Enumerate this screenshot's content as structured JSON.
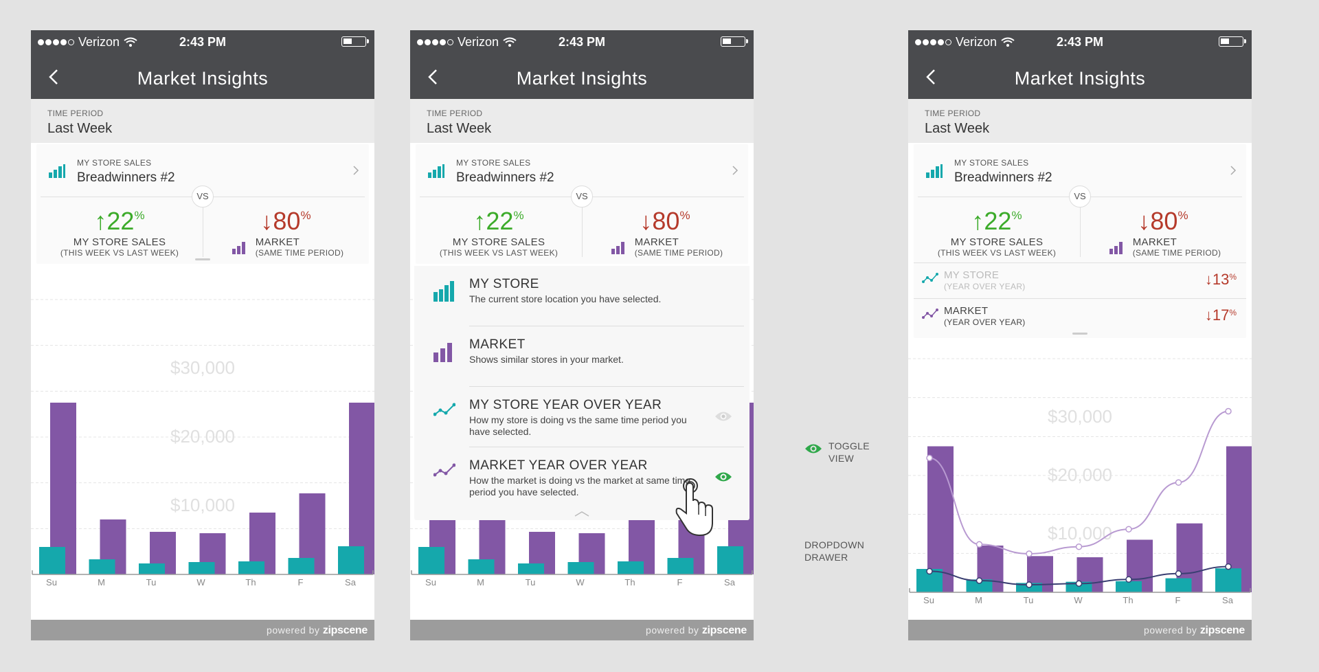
{
  "status": {
    "carrier": "Verizon",
    "time": "2:43 PM"
  },
  "nav": {
    "title": "Market Insights"
  },
  "period": {
    "label": "TIME PERIOD",
    "value": "Last Week"
  },
  "store": {
    "label": "MY STORE SALES",
    "name": "Breadwinners #2"
  },
  "vs": "VS",
  "metrics": {
    "store": {
      "value": "↑22",
      "unit": "%",
      "label": "MY STORE SALES",
      "sub": "(THIS WEEK VS LAST WEEK)"
    },
    "market": {
      "value": "↓80",
      "unit": "%",
      "label": "MARKET",
      "sub": "(SAME TIME PERIOD)"
    }
  },
  "drawer": {
    "items": [
      {
        "title": "MY STORE",
        "desc": "The current store location you have selected."
      },
      {
        "title": "MARKET",
        "desc": "Shows similar stores in your market."
      },
      {
        "title": "MY STORE YEAR OVER YEAR",
        "desc": "How my store is doing vs the same time period you have selected."
      },
      {
        "title": "MARKET YEAR OVER YEAR",
        "desc": "How the market is doing vs the market at same time period you have selected."
      }
    ]
  },
  "yoy": {
    "store": {
      "name": "MY STORE",
      "desc": "(YEAR OVER YEAR)",
      "value": "↓13",
      "unit": "%"
    },
    "market": {
      "name": "MARKET",
      "desc": "(YEAR OVER YEAR)",
      "value": "↓17",
      "unit": "%"
    }
  },
  "annotations": {
    "toggle": "TOGGLE\nVIEW",
    "drawer": "DROPDOWN\nDRAWER"
  },
  "footer": {
    "powered": "powered by",
    "brand": "zipscene"
  },
  "colors": {
    "purple": "#8257a5",
    "teal": "#15a8ac",
    "green": "#3cab2a",
    "red": "#b53a2b",
    "header": "#4a4b4e"
  },
  "chart_data": {
    "type": "bar",
    "categories": [
      "Su",
      "M",
      "Tu",
      "W",
      "Th",
      "F",
      "Sa"
    ],
    "yticks": [
      "$10,000",
      "$20,000",
      "$30,000"
    ],
    "ylim": [
      0,
      40000
    ],
    "series": [
      {
        "name": "MARKET",
        "values": [
          25000,
          8000,
          6200,
          6000,
          9000,
          11800,
          25000
        ]
      },
      {
        "name": "MY STORE",
        "values": [
          4000,
          2200,
          1600,
          1800,
          1900,
          2400,
          4100
        ]
      }
    ],
    "overlay_lines": {
      "market_yoy": [
        23000,
        8200,
        6600,
        7800,
        10800,
        18800,
        31000
      ],
      "store_yoy": [
        3600,
        2000,
        1300,
        1500,
        2200,
        3200,
        4400
      ]
    }
  }
}
